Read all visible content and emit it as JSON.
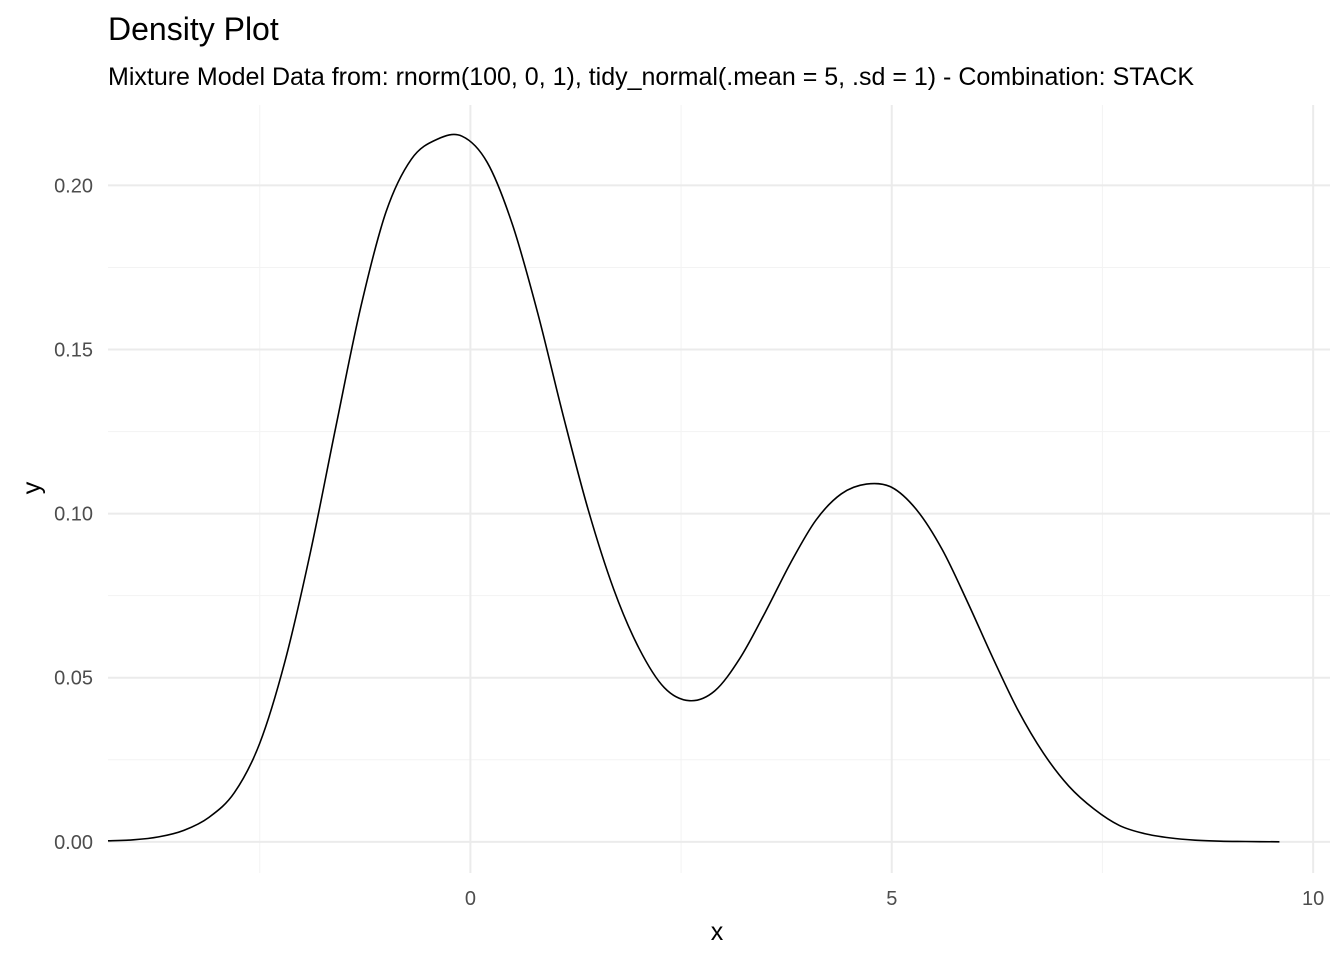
{
  "chart_data": {
    "type": "line",
    "title": "Density Plot",
    "subtitle": "Mixture Model Data from: rnorm(100, 0, 1), tidy_normal(.mean = 5, .sd = 1) - Combination: STACK",
    "xlabel": "x",
    "ylabel": "y",
    "xlim": [
      -4.3,
      10.2
    ],
    "ylim": [
      -0.0095,
      0.2245
    ],
    "x_ticks": [
      0,
      5,
      10
    ],
    "x_tick_labels": [
      "0",
      "5",
      "10"
    ],
    "x_minor_ticks": [
      -2.5,
      2.5,
      7.5
    ],
    "y_ticks": [
      0.0,
      0.05,
      0.1,
      0.15,
      0.2
    ],
    "y_tick_labels": [
      "0.00",
      "0.05",
      "0.10",
      "0.15",
      "0.20"
    ],
    "y_minor_ticks": [
      0.025,
      0.075,
      0.125,
      0.175
    ],
    "grid": true,
    "colors": {
      "line": "#000000",
      "grid": "#ebebeb",
      "tick_text": "#4d4d4d"
    },
    "series": [
      {
        "x": [
          -4.3,
          -4.0,
          -3.7,
          -3.4,
          -3.1,
          -2.8,
          -2.5,
          -2.2,
          -1.9,
          -1.6,
          -1.3,
          -1.0,
          -0.7,
          -0.4,
          -0.1,
          0.2,
          0.5,
          0.8,
          1.1,
          1.4,
          1.7,
          2.0,
          2.3,
          2.6,
          2.9,
          3.2,
          3.5,
          3.8,
          4.1,
          4.4,
          4.7,
          5.0,
          5.3,
          5.6,
          5.9,
          6.2,
          6.5,
          6.8,
          7.1,
          7.4,
          7.7,
          8.0,
          8.3,
          8.6,
          8.9,
          9.2,
          9.6
        ],
        "y": [
          0.0003,
          0.0006,
          0.0015,
          0.0035,
          0.0075,
          0.015,
          0.03,
          0.055,
          0.088,
          0.126,
          0.163,
          0.192,
          0.208,
          0.214,
          0.215,
          0.207,
          0.188,
          0.161,
          0.13,
          0.101,
          0.077,
          0.059,
          0.047,
          0.043,
          0.046,
          0.056,
          0.07,
          0.085,
          0.098,
          0.106,
          0.109,
          0.108,
          0.101,
          0.089,
          0.073,
          0.056,
          0.04,
          0.027,
          0.017,
          0.01,
          0.005,
          0.0025,
          0.0012,
          0.0005,
          0.0002,
          0.0001,
          0.0
        ]
      }
    ]
  }
}
